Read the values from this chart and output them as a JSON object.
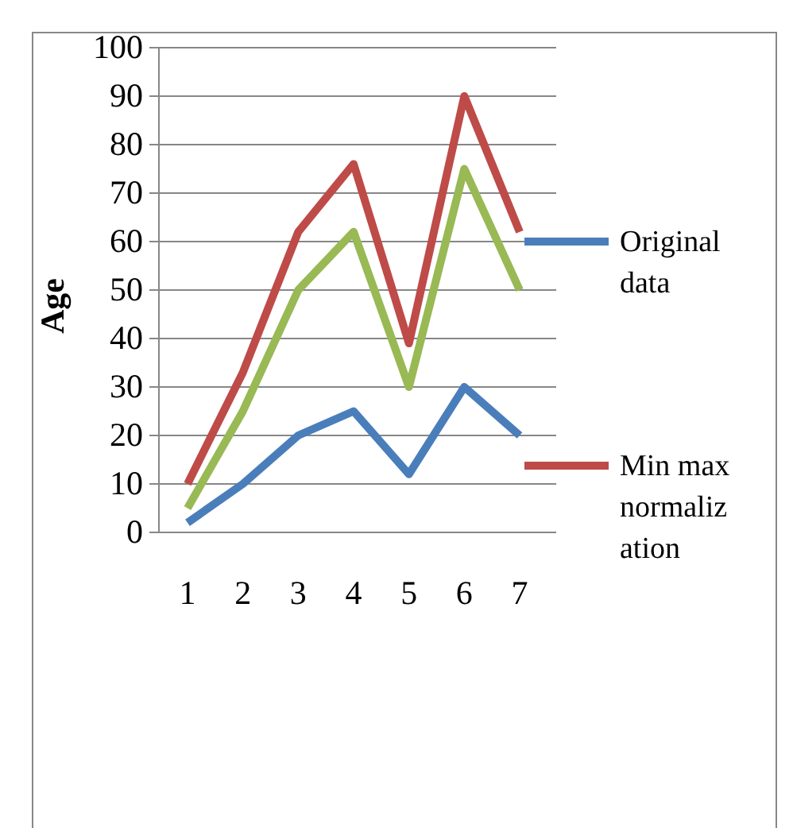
{
  "chart_data": {
    "type": "line",
    "ylabel": "Age",
    "categories": [
      "1",
      "2",
      "3",
      "4",
      "5",
      "6",
      "7"
    ],
    "series": [
      {
        "name": "Original data",
        "color": "#4a7ebb",
        "values": [
          2,
          10,
          20,
          25,
          12,
          30,
          20
        ]
      },
      {
        "name": "Min max normalization",
        "color": "#be4b48",
        "values": [
          10,
          33,
          62,
          76,
          39,
          90,
          62
        ]
      },
      {
        "color": "#98b954",
        "values": [
          5,
          25,
          50,
          62,
          30,
          75,
          50
        ]
      }
    ],
    "ylim": [
      0,
      100
    ],
    "yticks": [
      0,
      10,
      20,
      30,
      40,
      50,
      60,
      70,
      80,
      90,
      100
    ],
    "grid": "y",
    "legend": "right",
    "marker": "none",
    "line_style": "solid"
  }
}
